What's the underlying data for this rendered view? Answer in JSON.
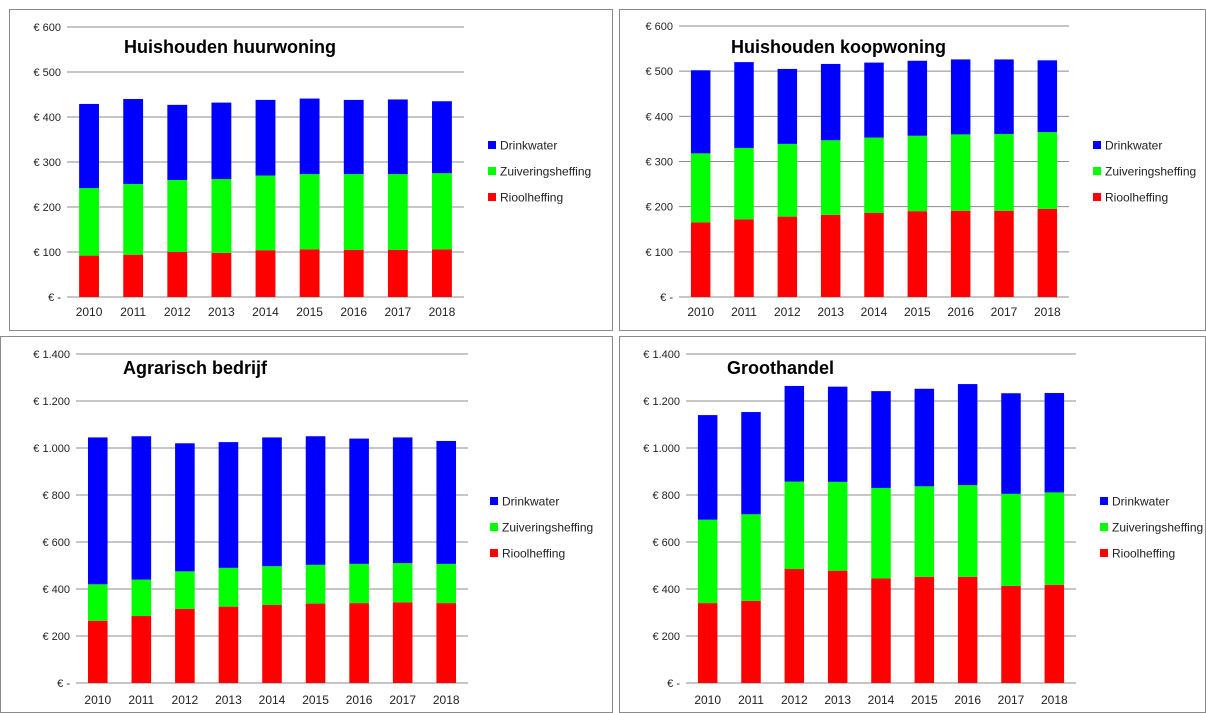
{
  "chart_data": [
    {
      "type": "bar",
      "stacked": true,
      "title": "Huishouden huurwoning",
      "categories": [
        "2010",
        "2011",
        "2012",
        "2013",
        "2014",
        "2015",
        "2016",
        "2017",
        "2018"
      ],
      "ylim": [
        0,
        600
      ],
      "yticks": [
        0,
        100,
        200,
        300,
        400,
        500,
        600
      ],
      "ytick_labels": [
        "€ -",
        "€ 100",
        "€ 200",
        "€ 300",
        "€ 400",
        "€ 500",
        "€ 600"
      ],
      "grid": true,
      "legend_position": "right",
      "series": [
        {
          "name": "Rioolheffing",
          "color": "#ff0000",
          "values": [
            92,
            94,
            100,
            98,
            104,
            106,
            105,
            105,
            106
          ]
        },
        {
          "name": "Zuiveringsheffing",
          "color": "#00ff00",
          "values": [
            150,
            157,
            160,
            164,
            166,
            167,
            168,
            168,
            169
          ]
        },
        {
          "name": "Drinkwater",
          "color": "#0000ff",
          "values": [
            187,
            189,
            167,
            170,
            168,
            168,
            165,
            166,
            160
          ]
        }
      ]
    },
    {
      "type": "bar",
      "stacked": true,
      "title": "Huishouden koopwoning",
      "categories": [
        "2010",
        "2011",
        "2012",
        "2013",
        "2014",
        "2015",
        "2016",
        "2017",
        "2018"
      ],
      "ylim": [
        0,
        600
      ],
      "yticks": [
        0,
        100,
        200,
        300,
        400,
        500,
        600
      ],
      "ytick_labels": [
        "€ -",
        "€ 100",
        "€ 200",
        "€ 300",
        "€ 400",
        "€ 500",
        "€ 600"
      ],
      "grid": true,
      "legend_position": "right",
      "series": [
        {
          "name": "Rioolheffing",
          "color": "#ff0000",
          "values": [
            165,
            172,
            178,
            182,
            186,
            190,
            191,
            191,
            195
          ]
        },
        {
          "name": "Zuiveringsheffing",
          "color": "#00ff00",
          "values": [
            153,
            158,
            161,
            165,
            167,
            167,
            169,
            170,
            170
          ]
        },
        {
          "name": "Drinkwater",
          "color": "#0000ff",
          "values": [
            184,
            190,
            166,
            169,
            166,
            166,
            166,
            165,
            159
          ]
        }
      ]
    },
    {
      "type": "bar",
      "stacked": true,
      "title": "Agrarisch bedrijf",
      "categories": [
        "2010",
        "2011",
        "2012",
        "2013",
        "2014",
        "2015",
        "2016",
        "2017",
        "2018"
      ],
      "ylim": [
        0,
        1400
      ],
      "yticks": [
        0,
        200,
        400,
        600,
        800,
        1000,
        1200,
        1400
      ],
      "ytick_labels": [
        "€ -",
        "€ 200",
        "€ 400",
        "€ 600",
        "€ 800",
        "€ 1.000",
        "€ 1.200",
        "€ 1.400"
      ],
      "grid": true,
      "legend_position": "right",
      "series": [
        {
          "name": "Rioolheffing",
          "color": "#ff0000",
          "values": [
            265,
            285,
            315,
            325,
            332,
            338,
            340,
            343,
            340
          ]
        },
        {
          "name": "Zuiveringsheffing",
          "color": "#00ff00",
          "values": [
            155,
            155,
            160,
            165,
            165,
            165,
            167,
            167,
            167
          ]
        },
        {
          "name": "Drinkwater",
          "color": "#0000ff",
          "values": [
            625,
            610,
            545,
            535,
            548,
            547,
            533,
            535,
            523
          ]
        }
      ]
    },
    {
      "type": "bar",
      "stacked": true,
      "title": "Groothandel",
      "categories": [
        "2010",
        "2011",
        "2012",
        "2013",
        "2014",
        "2015",
        "2016",
        "2017",
        "2018"
      ],
      "ylim": [
        0,
        1400
      ],
      "yticks": [
        0,
        200,
        400,
        600,
        800,
        1000,
        1200,
        1400
      ],
      "ytick_labels": [
        "€ -",
        "€ 200",
        "€ 400",
        "€ 600",
        "€ 800",
        "€ 1.000",
        "€ 1.200",
        "€ 1.400"
      ],
      "grid": true,
      "legend_position": "right",
      "series": [
        {
          "name": "Rioolheffing",
          "color": "#ff0000",
          "values": [
            340,
            350,
            485,
            478,
            445,
            452,
            452,
            413,
            418
          ]
        },
        {
          "name": "Zuiveringsheffing",
          "color": "#00ff00",
          "values": [
            355,
            368,
            372,
            378,
            385,
            385,
            390,
            392,
            393
          ]
        },
        {
          "name": "Drinkwater",
          "color": "#0000ff",
          "values": [
            445,
            435,
            407,
            405,
            412,
            415,
            430,
            428,
            423
          ]
        }
      ]
    }
  ]
}
